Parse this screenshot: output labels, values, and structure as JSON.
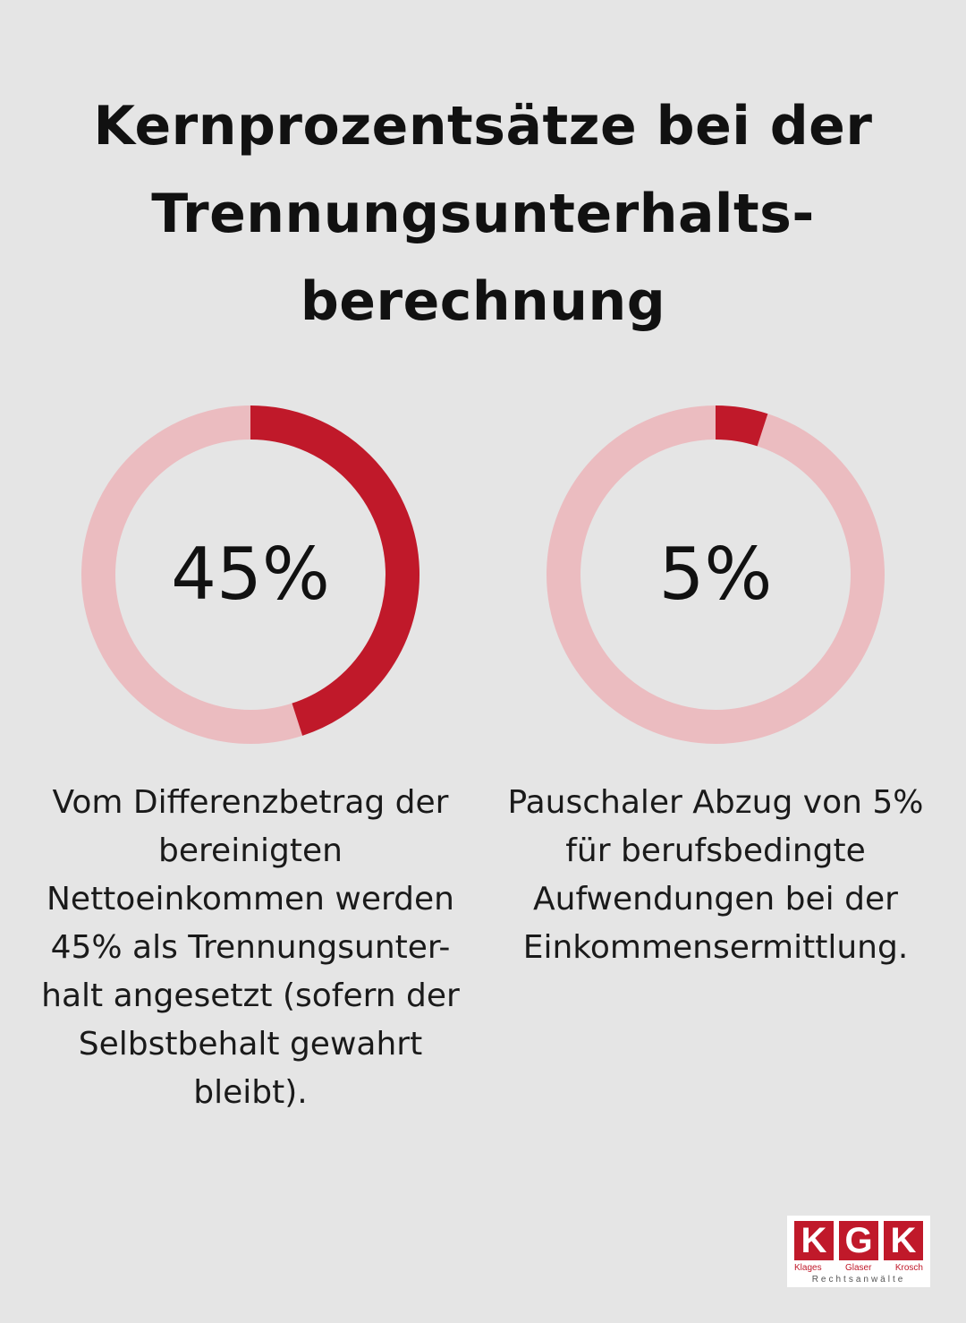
{
  "title": {
    "line1": "Kernprozentsätze bei der",
    "line2": "Trennungsunterhalts-",
    "line3": "berechnung"
  },
  "chart_data": [
    {
      "type": "pie",
      "value": 45,
      "label": "45%",
      "colors": {
        "filled": "#c0192a",
        "track": "#ebbcc0"
      },
      "description": [
        "Vom Differenzbetrag der",
        "bereinigten",
        "Nettoeinkommen werden",
        "45% als Trennungsunter-",
        "halt angesetzt (sofern der",
        "Selbstbehalt gewahrt",
        "bleibt)."
      ]
    },
    {
      "type": "pie",
      "value": 5,
      "label": "5%",
      "colors": {
        "filled": "#c0192a",
        "track": "#ebbcc0"
      },
      "description": [
        "Pauschaler Abzug von 5%",
        "für berufsbedingte",
        "Aufwendungen bei der",
        "Einkommensermittlung."
      ]
    }
  ],
  "logo": {
    "letters": [
      "K",
      "G",
      "K"
    ],
    "names": [
      "Klages",
      "Glaser",
      "Krosch"
    ],
    "subtitle": "Rechtsanwälte"
  },
  "colors": {
    "background": "#e5e5e5",
    "accent": "#c0192a"
  }
}
